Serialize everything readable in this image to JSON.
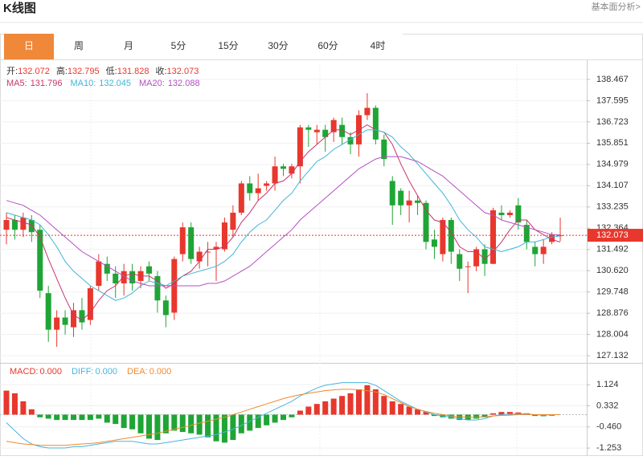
{
  "header": {
    "title": "K线图",
    "link": "基本面分析>"
  },
  "tabs": {
    "items": [
      "日",
      "周",
      "月",
      "5分",
      "15分",
      "30分",
      "60分",
      "4时"
    ],
    "active": 0
  },
  "chart_data": [
    {
      "type": "candlestick",
      "ohlc_info": [
        {
          "label": "开:",
          "value": 132.072
        },
        {
          "label": "高:",
          "value": 132.795
        },
        {
          "label": "低:",
          "value": 131.828
        },
        {
          "label": "收:",
          "value": 132.073
        }
      ],
      "open": [
        132.3,
        132.7,
        132.3,
        132.7,
        132.3,
        129.7,
        128.2,
        128.7,
        128.3,
        129.0,
        128.6,
        130.0,
        130.9,
        130.5,
        130.1,
        130.6,
        130.2,
        130.8,
        130.4,
        129.4,
        128.9,
        131.3,
        132.4,
        131.0,
        131.4,
        131.5,
        131.5,
        132.3,
        133.0,
        134.2,
        133.8,
        134.1,
        134.2,
        134.9,
        134.6,
        134.9,
        136.5,
        136.3,
        136.4,
        136.3,
        136.6,
        136.1,
        135.8,
        137.0,
        137.3,
        136.0,
        134.3,
        133.9,
        133.3,
        133.5,
        133.4,
        131.9,
        131.3,
        132.7,
        131.3,
        130.8,
        130.8,
        131.5,
        130.9,
        133.0,
        132.9,
        133.3,
        132.5,
        131.6,
        131.3,
        131.8,
        132.072
      ],
      "high": [
        133.0,
        132.9,
        133.0,
        132.9,
        132.5,
        130.0,
        129.0,
        129.0,
        129.3,
        129.5,
        130.0,
        131.3,
        131.2,
        130.8,
        130.9,
        130.9,
        130.8,
        131.0,
        130.6,
        129.6,
        131.2,
        132.6,
        132.6,
        131.6,
        131.8,
        131.8,
        132.8,
        133.3,
        134.3,
        134.5,
        134.6,
        134.3,
        135.3,
        135.0,
        135.0,
        136.6,
        136.6,
        136.6,
        136.6,
        136.9,
        136.9,
        136.3,
        137.2,
        137.9,
        137.4,
        136.2,
        134.5,
        134.0,
        133.9,
        133.7,
        133.5,
        132.3,
        132.8,
        132.8,
        131.5,
        131.0,
        131.6,
        131.7,
        133.2,
        133.3,
        133.1,
        133.6,
        132.7,
        131.8,
        131.9,
        132.2,
        132.795
      ],
      "low": [
        131.7,
        131.9,
        132.0,
        131.8,
        129.5,
        127.7,
        127.5,
        128.0,
        127.9,
        128.2,
        128.4,
        129.8,
        130.2,
        129.5,
        129.6,
        129.8,
        129.9,
        130.2,
        128.9,
        128.3,
        128.6,
        131.0,
        130.9,
        130.7,
        130.8,
        130.2,
        131.4,
        132.0,
        132.9,
        133.5,
        133.5,
        133.9,
        133.9,
        134.5,
        134.4,
        134.2,
        135.7,
        135.8,
        135.5,
        135.9,
        135.8,
        135.4,
        135.3,
        136.8,
        135.8,
        134.9,
        132.5,
        132.9,
        132.6,
        132.9,
        131.5,
        131.1,
        131.0,
        130.9,
        130.2,
        129.7,
        130.6,
        130.4,
        130.9,
        132.7,
        132.8,
        132.3,
        131.5,
        130.8,
        130.9,
        131.7,
        131.828
      ],
      "close": [
        132.7,
        132.3,
        132.8,
        132.2,
        129.8,
        128.2,
        128.7,
        128.4,
        129.0,
        128.5,
        129.9,
        131.0,
        130.5,
        130.1,
        130.6,
        130.1,
        130.6,
        130.5,
        129.4,
        128.8,
        131.1,
        132.4,
        131.1,
        131.4,
        131.4,
        131.6,
        132.6,
        133.0,
        134.2,
        133.8,
        134.0,
        134.2,
        134.9,
        134.8,
        134.9,
        136.5,
        136.4,
        136.4,
        136.1,
        136.8,
        136.1,
        135.8,
        137.0,
        137.3,
        136.0,
        135.2,
        133.3,
        133.3,
        133.5,
        133.4,
        131.8,
        131.6,
        132.7,
        131.4,
        130.7,
        130.8,
        131.5,
        130.9,
        133.1,
        132.9,
        133.0,
        132.6,
        131.8,
        131.3,
        131.6,
        132.1,
        132.073
      ],
      "up_color": "#e8372c",
      "down_color": "#1fa535",
      "series": [
        {
          "name": "MA5:",
          "current": 131.796,
          "color": "#c8366b",
          "values": [
            132.8,
            132.7,
            132.6,
            132.5,
            132.0,
            131.1,
            130.3,
            129.5,
            128.8,
            128.6,
            128.9,
            129.4,
            129.8,
            130.0,
            130.4,
            130.5,
            130.4,
            130.4,
            130.2,
            129.9,
            130.1,
            130.4,
            130.6,
            131.0,
            131.5,
            131.5,
            131.6,
            132.0,
            132.6,
            133.0,
            133.5,
            133.8,
            134.2,
            134.3,
            134.6,
            135.1,
            135.5,
            135.8,
            136.1,
            136.4,
            136.4,
            136.2,
            136.4,
            136.6,
            136.4,
            136.3,
            135.8,
            135.0,
            134.3,
            133.7,
            133.1,
            132.7,
            132.6,
            132.2,
            131.6,
            131.4,
            131.4,
            131.1,
            131.4,
            131.8,
            132.3,
            132.7,
            132.7,
            132.3,
            132.1,
            131.9,
            131.796
          ]
        },
        {
          "name": "MA10:",
          "current": 132.045,
          "color": "#3fb5d9",
          "values": [
            133.0,
            132.9,
            132.8,
            132.7,
            132.5,
            132.1,
            131.6,
            131.0,
            130.6,
            130.3,
            130.0,
            129.8,
            129.6,
            129.4,
            129.5,
            129.7,
            130.0,
            130.2,
            130.1,
            130.0,
            130.2,
            130.4,
            130.5,
            130.6,
            130.7,
            130.8,
            131.0,
            131.3,
            131.8,
            132.2,
            132.5,
            132.7,
            133.1,
            133.5,
            133.8,
            134.3,
            134.7,
            135.1,
            135.3,
            135.6,
            135.8,
            136.0,
            136.2,
            136.4,
            136.4,
            136.3,
            136.1,
            135.7,
            135.4,
            135.0,
            134.6,
            134.2,
            133.8,
            133.3,
            132.7,
            132.3,
            132.0,
            131.6,
            131.5,
            131.4,
            131.5,
            131.6,
            131.8,
            131.8,
            131.9,
            132.0,
            132.045
          ]
        },
        {
          "name": "MA20:",
          "current": 132.088,
          "color": "#b44fc4",
          "values": [
            133.5,
            133.4,
            133.3,
            133.1,
            132.9,
            132.6,
            132.3,
            132.0,
            131.7,
            131.4,
            131.2,
            131.0,
            130.8,
            130.6,
            130.4,
            130.2,
            130.1,
            130.0,
            130.0,
            130.0,
            130.0,
            130.0,
            130.0,
            130.0,
            130.1,
            130.1,
            130.2,
            130.4,
            130.6,
            130.8,
            131.1,
            131.4,
            131.7,
            132.0,
            132.3,
            132.7,
            133.0,
            133.3,
            133.6,
            133.9,
            134.2,
            134.5,
            134.8,
            135.0,
            135.2,
            135.3,
            135.3,
            135.3,
            135.2,
            135.1,
            134.9,
            134.7,
            134.5,
            134.2,
            133.9,
            133.6,
            133.3,
            133.0,
            132.9,
            132.7,
            132.6,
            132.5,
            132.4,
            132.3,
            132.2,
            132.1,
            132.088
          ]
        }
      ],
      "ylim": [
        126.84,
        138.99
      ],
      "yticks": [
        138.467,
        137.595,
        136.723,
        135.851,
        134.979,
        134.107,
        133.235,
        132.364,
        131.492,
        {
          "value": 130.62,
          "label": "130.620"
        },
        129.748,
        128.876,
        128.004,
        127.132
      ],
      "last_price": 132.073,
      "grid": true
    },
    {
      "type": "macd",
      "histogram": {
        "name": "MACD:",
        "current": "0.000",
        "up_color": "#e8372c",
        "down_color": "#1fa535",
        "values": [
          0.9,
          0.8,
          0.5,
          0.2,
          -0.1,
          -0.15,
          -0.2,
          -0.2,
          -0.2,
          -0.2,
          -0.2,
          -0.15,
          -0.3,
          -0.35,
          -0.5,
          -0.55,
          -0.7,
          -0.9,
          -0.95,
          -0.7,
          -0.6,
          -0.65,
          -0.7,
          -0.75,
          -0.85,
          -1.0,
          -1.05,
          -0.95,
          -0.7,
          -0.6,
          -0.5,
          -0.4,
          -0.3,
          -0.2,
          -0.1,
          0.15,
          0.3,
          0.4,
          0.5,
          0.6,
          0.7,
          0.8,
          0.95,
          1.1,
          0.95,
          0.7,
          0.5,
          0.4,
          0.3,
          0.2,
          0.1,
          -0.05,
          -0.1,
          -0.15,
          -0.2,
          -0.2,
          -0.15,
          -0.1,
          0.05,
          0.1,
          0.1,
          0.08,
          0.05,
          -0.05,
          -0.06,
          -0.04,
          0.0
        ]
      },
      "series": [
        {
          "name": "DIFF:",
          "current": "0.000",
          "color": "#4ab4e0",
          "values": [
            -0.3,
            -0.6,
            -0.9,
            -1.1,
            -1.2,
            -1.25,
            -1.25,
            -1.25,
            -1.2,
            -1.2,
            -1.15,
            -1.1,
            -1.05,
            -1.0,
            -1.0,
            -1.0,
            -1.05,
            -1.1,
            -1.1,
            -1.05,
            -1.0,
            -0.95,
            -0.9,
            -0.85,
            -0.8,
            -0.75,
            -0.65,
            -0.55,
            -0.4,
            -0.25,
            -0.1,
            0.05,
            0.2,
            0.35,
            0.5,
            0.7,
            0.85,
            1.0,
            1.1,
            1.15,
            1.2,
            1.2,
            1.2,
            1.2,
            1.1,
            0.9,
            0.7,
            0.5,
            0.35,
            0.2,
            0.1,
            0.0,
            -0.05,
            -0.1,
            -0.15,
            -0.2,
            -0.2,
            -0.15,
            -0.05,
            0.0,
            0.02,
            0.03,
            0.02,
            0.0,
            -0.02,
            0.0,
            0.0
          ]
        },
        {
          "name": "DEA:",
          "current": "0.000",
          "color": "#f08a30",
          "values": [
            -1.0,
            -1.05,
            -1.1,
            -1.12,
            -1.15,
            -1.15,
            -1.15,
            -1.15,
            -1.12,
            -1.1,
            -1.08,
            -1.05,
            -1.0,
            -0.95,
            -0.9,
            -0.85,
            -0.8,
            -0.75,
            -0.7,
            -0.62,
            -0.55,
            -0.48,
            -0.4,
            -0.32,
            -0.25,
            -0.17,
            -0.1,
            0.0,
            0.1,
            0.2,
            0.3,
            0.4,
            0.5,
            0.6,
            0.68,
            0.75,
            0.8,
            0.85,
            0.9,
            0.93,
            0.95,
            0.95,
            0.93,
            0.9,
            0.85,
            0.75,
            0.6,
            0.45,
            0.3,
            0.2,
            0.12,
            0.05,
            0.0,
            -0.05,
            -0.08,
            -0.1,
            -0.1,
            -0.08,
            -0.05,
            -0.03,
            -0.02,
            0.0,
            0.0,
            0.0,
            0.0,
            0.0,
            0.0
          ]
        }
      ],
      "ylim": [
        -1.55,
        1.82
      ],
      "yticks": [
        1.124,
        0.332,
        {
          "value": -0.46,
          "label": "-0.460"
        },
        -1.253
      ]
    }
  ]
}
